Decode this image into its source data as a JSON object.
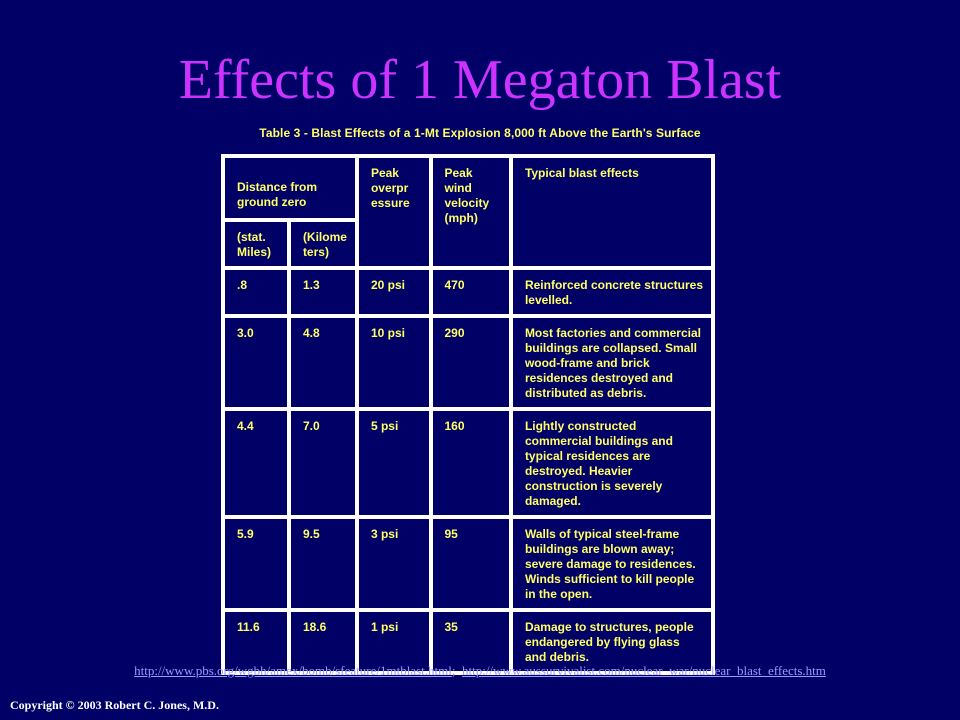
{
  "title": "Effects of 1 Megaton Blast",
  "subtitle": "Table 3 - Blast Effects of a 1-Mt Explosion 8,000 ft Above the Earth's Surface",
  "table": {
    "headers": {
      "distance": "Distance from ground zero",
      "stat_miles": "(stat. Miles)",
      "kilometers": "(Kilome ters)",
      "overpressure": "Peak overpr essure",
      "wind": "Peak wind velocity (mph)",
      "effects": "Typical blast effects"
    },
    "rows": [
      {
        "miles": ".8",
        "km": "1.3",
        "psi": "20 psi",
        "wind": "470",
        "effect": "Reinforced concrete structures levelled."
      },
      {
        "miles": "3.0",
        "km": "4.8",
        "psi": "10 psi",
        "wind": "290",
        "effect": "Most factories and commercial buildings are collapsed. Small wood-frame and brick residences destroyed and distributed as debris."
      },
      {
        "miles": "4.4",
        "km": "7.0",
        "psi": "5 psi",
        "wind": "160",
        "effect": "Lightly constructed commercial buildings and typical residences are destroyed. Heavier construction is severely damaged."
      },
      {
        "miles": "5.9",
        "km": "9.5",
        "psi": "3 psi",
        "wind": "95",
        "effect": "Walls of typical steel-frame buildings are blown away; severe damage to residences. Winds sufficient to kill people in the open."
      },
      {
        "miles": "11.6",
        "km": "18.6",
        "psi": "1 psi",
        "wind": "35",
        "effect": "Damage to structures, people endangered by flying glass and debris."
      }
    ]
  },
  "links": {
    "link1": "http://www.pbs.org/wgbh/amex/bomb/sfeature/1mtblast.html",
    "separator": ";",
    "link2": "http://www.aussurvivalist.com/nuclear_war/nuclear_blast_effects.htm"
  },
  "copyright": "Copyright © 2003 Robert C. Jones, M.D.",
  "colors": {
    "background": "#000066",
    "title": "#cc33ff",
    "text": "#ffff66",
    "link": "#9999ff"
  }
}
